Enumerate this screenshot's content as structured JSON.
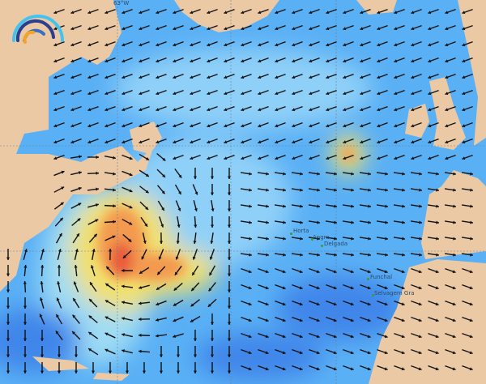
{
  "map": {
    "type": "wave height and direction forecast",
    "region": "North Atlantic",
    "colors": {
      "ocean_low": "#1a3fe0",
      "ocean_mid": "#5ab0f5",
      "ocean_light": "#9fd6f8",
      "swell_yellow": "#f2e06a",
      "swell_orange": "#f39a50",
      "swell_red": "#ea5a3a",
      "land": "#ecc9a5",
      "arrow": "#111111"
    },
    "graticule_label": "63°W",
    "places": [
      {
        "name": "Horta"
      },
      {
        "name": "Angra"
      },
      {
        "name": "Delgada"
      },
      {
        "name": "Funchal"
      },
      {
        "name": "Selvagem Gra"
      }
    ],
    "logo_icon": "wave-rainbow-logo"
  }
}
